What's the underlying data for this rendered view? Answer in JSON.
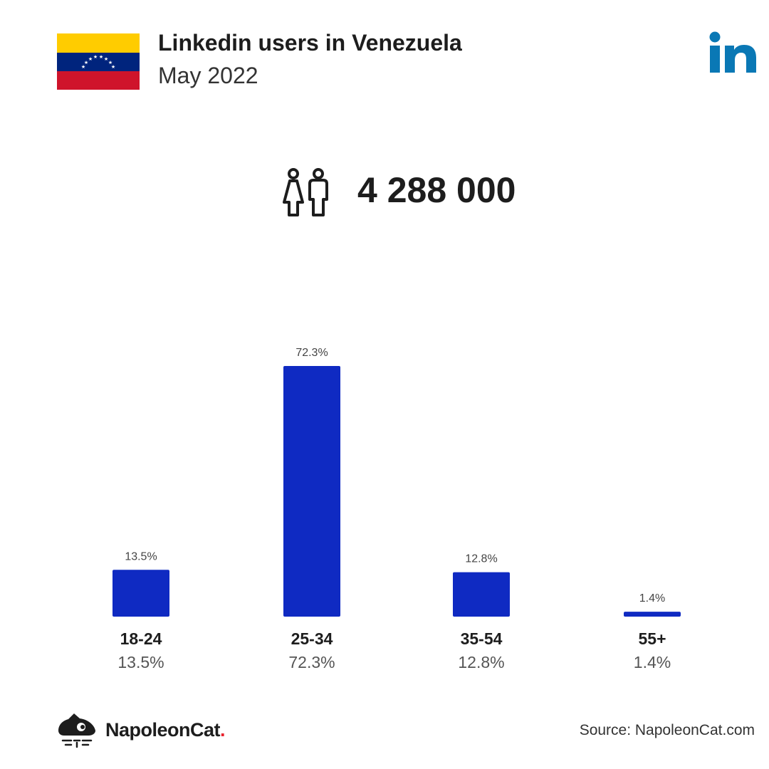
{
  "header": {
    "title": "Linkedin users in Venezuela",
    "subtitle": "May 2022",
    "linkedin_icon": "linkedin-logo-icon",
    "flag_icon": "venezuela-flag-icon"
  },
  "total_users": "4 288 000",
  "users_icon": "users-icon",
  "colors": {
    "bar": "#0f2ac2",
    "linkedin": "#0a78b5",
    "flag_yellow": "#ffcc00",
    "flag_blue": "#00247d",
    "flag_red": "#cf142b"
  },
  "chart_data": {
    "type": "bar",
    "categories": [
      "18-24",
      "25-34",
      "35-54",
      "55+"
    ],
    "values": [
      13.5,
      72.3,
      12.8,
      1.4
    ],
    "value_labels": [
      "13.5%",
      "72.3%",
      "12.8%",
      "1.4%"
    ],
    "ylim": [
      0,
      72.3
    ],
    "grid": false
  },
  "footer": {
    "brand_name": "NapoleonCat",
    "brand_dot": ".",
    "source": "Source: NapoleonCat.com",
    "brand_icon": "napoleoncat-logo-icon"
  }
}
